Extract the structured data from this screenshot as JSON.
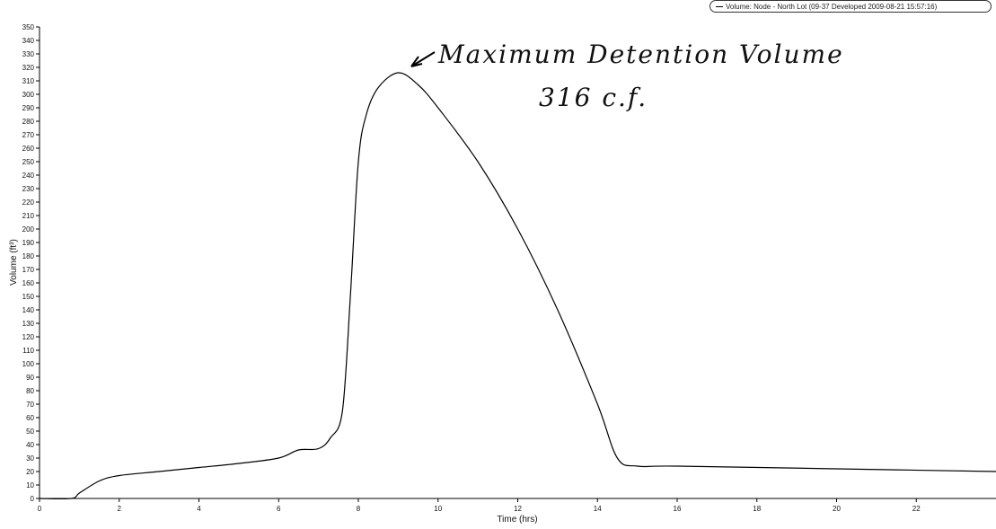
{
  "chart_data": {
    "type": "line",
    "xlabel": "Time (hrs)",
    "ylabel": "Volume (ft³)",
    "xlim": [
      0,
      24
    ],
    "ylim": [
      0,
      350
    ],
    "x_ticks": [
      "0",
      "2",
      "4",
      "6",
      "8",
      "10",
      "12",
      "14",
      "16",
      "18",
      "20",
      "22"
    ],
    "y_ticks": [
      "0",
      "10",
      "20",
      "30",
      "40",
      "50",
      "60",
      "70",
      "80",
      "90",
      "100",
      "110",
      "120",
      "130",
      "140",
      "150",
      "160",
      "170",
      "180",
      "190",
      "200",
      "210",
      "220",
      "230",
      "240",
      "250",
      "260",
      "270",
      "280",
      "290",
      "300",
      "310",
      "320",
      "330",
      "340",
      "350"
    ],
    "legend_position": "top-right",
    "grid": false,
    "series": [
      {
        "name": "Volume: Node - North Lot (09-37 Developed 2009-08-21 15:57:16)",
        "color": "#000000",
        "x": [
          0,
          0.8,
          1.0,
          1.5,
          2.0,
          3.0,
          4.0,
          5.0,
          6.0,
          6.5,
          7.0,
          7.3,
          7.6,
          7.8,
          8.0,
          8.2,
          8.5,
          9.0,
          9.5,
          10.0,
          11.0,
          12.0,
          13.0,
          14.0,
          14.5,
          15.0,
          16.0,
          20.0,
          24.0
        ],
        "y": [
          0,
          0,
          4,
          13,
          17,
          20,
          23,
          26,
          30,
          36,
          37,
          45,
          65,
          150,
          250,
          285,
          305,
          316,
          307,
          290,
          250,
          200,
          140,
          70,
          30,
          24,
          24,
          22,
          20
        ]
      }
    ]
  },
  "legend": {
    "label": "Volume: Node - North Lot (09-37 Developed 2009-08-21 15:57:16)"
  },
  "annotation": {
    "line1": "Maximum Detention Volume",
    "line2": "316 c.f."
  }
}
